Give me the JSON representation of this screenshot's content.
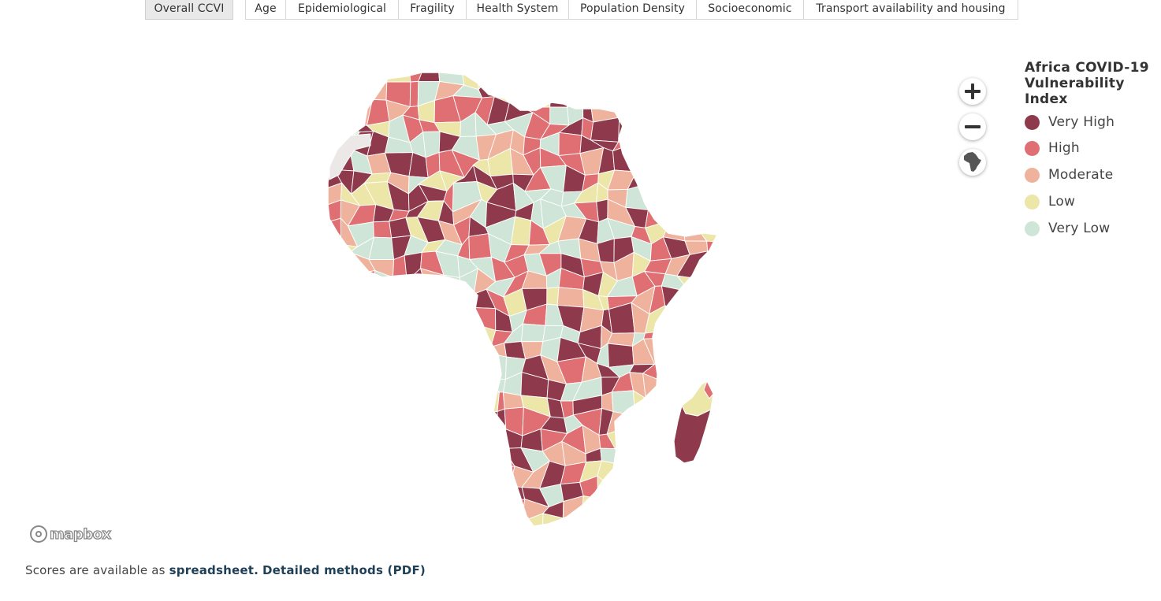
{
  "tabs": [
    {
      "label": "Overall CCVI",
      "active": true
    },
    {
      "label": "Age",
      "active": false
    },
    {
      "label": "Epidemiological",
      "active": false
    },
    {
      "label": "Fragility",
      "active": false
    },
    {
      "label": "Health System",
      "active": false
    },
    {
      "label": "Population Density",
      "active": false
    },
    {
      "label": "Socioeconomic",
      "active": false
    },
    {
      "label": "Transport availability and housing",
      "active": false
    }
  ],
  "legend": {
    "title": "Africa COVID-19 Vulnerability Index",
    "items": [
      {
        "label": "Very High",
        "color": "#8e3a4c"
      },
      {
        "label": "High",
        "color": "#df6f72"
      },
      {
        "label": "Moderate",
        "color": "#efb29c"
      },
      {
        "label": "Low",
        "color": "#ece6a8"
      },
      {
        "label": "Very Low",
        "color": "#cfe5d7"
      }
    ]
  },
  "controls": {
    "zoom_in": "zoom-in",
    "zoom_out": "zoom-out",
    "reset": "africa-icon"
  },
  "attribution": {
    "logo": "mapbox"
  },
  "footer": {
    "text": "Scores are available as",
    "spreadsheet_link": "spreadsheet.",
    "methods_link": "Detailed methods (PDF)"
  }
}
